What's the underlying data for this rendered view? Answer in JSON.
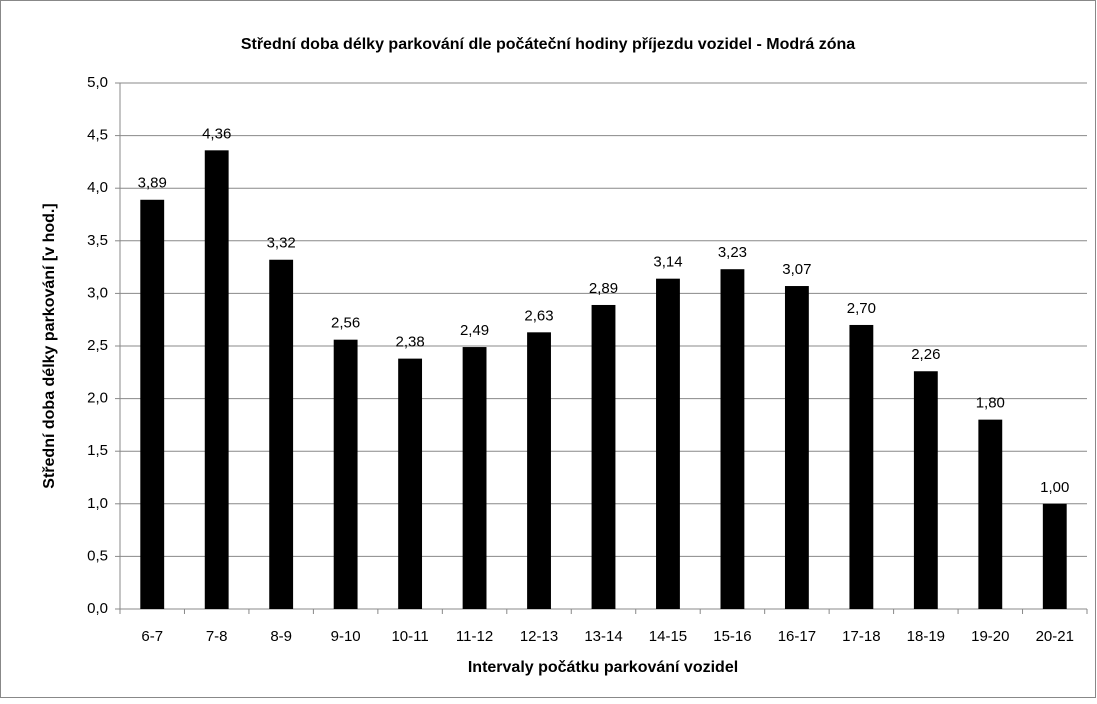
{
  "chart_data": {
    "type": "bar",
    "title": "Střední doba délky parkování dle počáteční hodiny příjezdu vozidel - Modrá zóna",
    "x_label": "Intervaly počátku parkování vozidel",
    "y_label": "Střední doba délky parkování [v hod.]",
    "categories": [
      "6-7",
      "7-8",
      "8-9",
      "9-10",
      "10-11",
      "11-12",
      "12-13",
      "13-14",
      "14-15",
      "15-16",
      "16-17",
      "17-18",
      "18-19",
      "19-20",
      "20-21"
    ],
    "values": [
      3.89,
      4.36,
      3.32,
      2.56,
      2.38,
      2.49,
      2.63,
      2.89,
      3.14,
      3.23,
      3.07,
      2.7,
      2.26,
      1.8,
      1.0
    ],
    "value_labels": [
      "3,89",
      "4,36",
      "3,32",
      "2,56",
      "2,38",
      "2,49",
      "2,63",
      "2,89",
      "3,14",
      "3,23",
      "3,07",
      "2,70",
      "2,26",
      "1,80",
      "1,00"
    ],
    "color": "#000000",
    "ylim": [
      0,
      5
    ],
    "yticks": [
      {
        "value": 0,
        "label": "0,0"
      },
      {
        "value": 0.5,
        "label": "0,5"
      },
      {
        "value": 1,
        "label": "1,0"
      },
      {
        "value": 1.5,
        "label": "1,5"
      },
      {
        "value": 2,
        "label": "2,0"
      },
      {
        "value": 2.5,
        "label": "2,5"
      },
      {
        "value": 3,
        "label": "3,0"
      },
      {
        "value": 3.5,
        "label": "3,5"
      },
      {
        "value": 4,
        "label": "4,0"
      },
      {
        "value": 4.5,
        "label": "4,5"
      },
      {
        "value": 5,
        "label": "5,0"
      }
    ],
    "grid": true
  }
}
